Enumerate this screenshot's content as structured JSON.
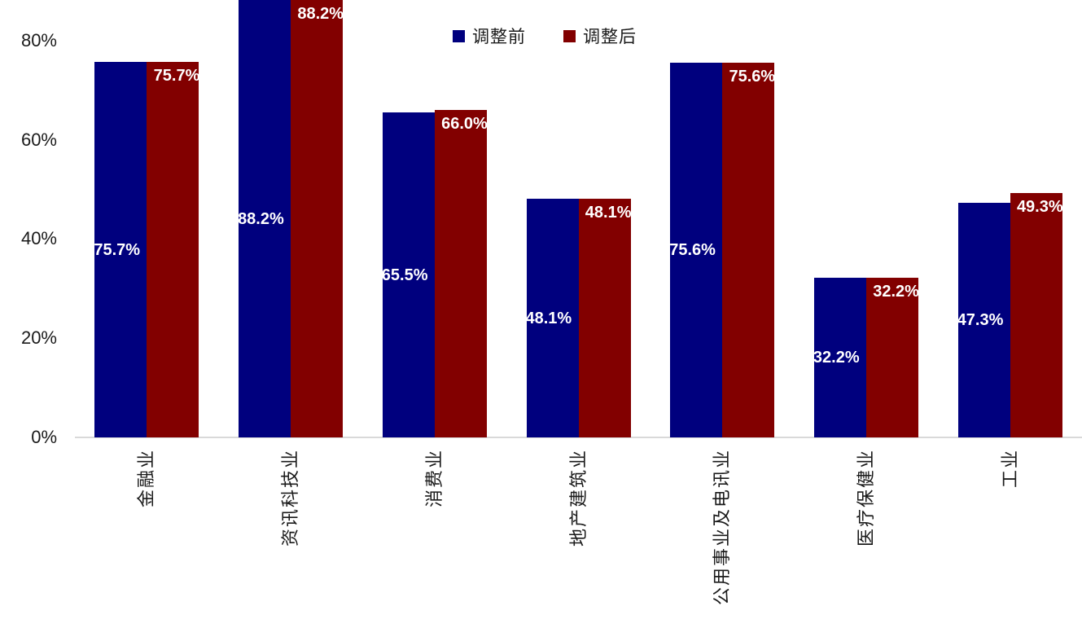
{
  "chart_data": {
    "type": "bar",
    "title": "",
    "categories": [
      "金融业",
      "资讯科技业",
      "消费业",
      "地产建筑业",
      "公用事业及电讯业",
      "医疗保健业",
      "工业"
    ],
    "series": [
      {
        "name": "调整前",
        "color": "#00007E",
        "values": [
          75.7,
          88.2,
          65.5,
          48.1,
          75.6,
          32.2,
          47.3
        ],
        "labels": [
          "75.7%",
          "88.2%",
          "65.5%",
          "48.1%",
          "75.6%",
          "32.2%",
          "47.3%"
        ]
      },
      {
        "name": "调整后",
        "color": "#820000",
        "values": [
          75.7,
          88.2,
          66.0,
          48.1,
          75.6,
          32.2,
          49.3
        ],
        "labels": [
          "75.7%",
          "88.2%",
          "66.0%",
          "48.1%",
          "75.6%",
          "32.2%",
          "49.3%"
        ]
      }
    ],
    "yticks": [
      "0%",
      "20%",
      "40%",
      "60%",
      "80%"
    ],
    "ytick_values": [
      0,
      20,
      40,
      60,
      80
    ],
    "ylim": [
      0,
      88.2
    ],
    "xlabel": "",
    "ylabel": "",
    "grid": false,
    "legend_position": "top-center",
    "data_label_color": "#FFFFFF",
    "axis_line_color": "#D9D9D9",
    "tick_text_color": "#1A1A1A"
  }
}
